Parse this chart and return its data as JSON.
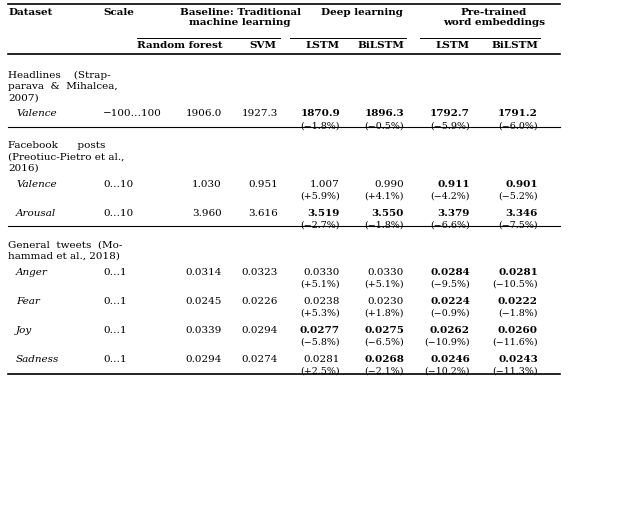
{
  "sections": [
    {
      "dataset_lines": [
        "Headlines    (Strap-",
        "parava  &  Mihalcea,",
        "2007)"
      ],
      "rows": [
        {
          "metric": "Valence",
          "scale": "−100…100",
          "rf": "1906.0",
          "svm": "1927.3",
          "lstm": "1870.9",
          "bilstm": "1896.3",
          "pt_lstm": "1792.7",
          "pt_bilstm": "1791.2",
          "lstm_pct": "(−1.8%)",
          "bilstm_pct": "(−0.5%)",
          "pt_lstm_pct": "(−5.9%)",
          "pt_bilstm_pct": "(−6.0%)",
          "bold_lstm": true,
          "bold_bilstm": true,
          "bold_pt_lstm": true,
          "bold_pt_bilstm": true
        }
      ]
    },
    {
      "dataset_lines": [
        "Facebook      posts",
        "(Preotiuc-Pietro et al.,",
        "2016)"
      ],
      "rows": [
        {
          "metric": "Valence",
          "scale": "0…10",
          "rf": "1.030",
          "svm": "0.951",
          "lstm": "1.007",
          "bilstm": "0.990",
          "pt_lstm": "0.911",
          "pt_bilstm": "0.901",
          "lstm_pct": "(+5.9%)",
          "bilstm_pct": "(+4.1%)",
          "pt_lstm_pct": "(−4.2%)",
          "pt_bilstm_pct": "(−5.2%)",
          "bold_lstm": false,
          "bold_bilstm": false,
          "bold_pt_lstm": true,
          "bold_pt_bilstm": true
        },
        {
          "metric": "Arousal",
          "scale": "0…10",
          "rf": "3.960",
          "svm": "3.616",
          "lstm": "3.519",
          "bilstm": "3.550",
          "pt_lstm": "3.379",
          "pt_bilstm": "3.346",
          "lstm_pct": "(−2.7%)",
          "bilstm_pct": "(−1.8%)",
          "pt_lstm_pct": "(−6.6%)",
          "pt_bilstm_pct": "(−7.5%)",
          "bold_lstm": true,
          "bold_bilstm": true,
          "bold_pt_lstm": true,
          "bold_pt_bilstm": true
        }
      ]
    },
    {
      "dataset_lines": [
        "General  tweets  (Mo-",
        "hammad et al., 2018)"
      ],
      "rows": [
        {
          "metric": "Anger",
          "scale": "0…1",
          "rf": "0.0314",
          "svm": "0.0323",
          "lstm": "0.0330",
          "bilstm": "0.0330",
          "pt_lstm": "0.0284",
          "pt_bilstm": "0.0281",
          "lstm_pct": "(+5.1%)",
          "bilstm_pct": "(+5.1%)",
          "pt_lstm_pct": "(−9.5%)",
          "pt_bilstm_pct": "(−10.5%)",
          "bold_lstm": false,
          "bold_bilstm": false,
          "bold_pt_lstm": true,
          "bold_pt_bilstm": true
        },
        {
          "metric": "Fear",
          "scale": "0…1",
          "rf": "0.0245",
          "svm": "0.0226",
          "lstm": "0.0238",
          "bilstm": "0.0230",
          "pt_lstm": "0.0224",
          "pt_bilstm": "0.0222",
          "lstm_pct": "(+5.3%)",
          "bilstm_pct": "(+1.8%)",
          "pt_lstm_pct": "(−0.9%)",
          "pt_bilstm_pct": "(−1.8%)",
          "bold_lstm": false,
          "bold_bilstm": false,
          "bold_pt_lstm": true,
          "bold_pt_bilstm": true
        },
        {
          "metric": "Joy",
          "scale": "0…1",
          "rf": "0.0339",
          "svm": "0.0294",
          "lstm": "0.0277",
          "bilstm": "0.0275",
          "pt_lstm": "0.0262",
          "pt_bilstm": "0.0260",
          "lstm_pct": "(−5.8%)",
          "bilstm_pct": "(−6.5%)",
          "pt_lstm_pct": "(−10.9%)",
          "pt_bilstm_pct": "(−11.6%)",
          "bold_lstm": true,
          "bold_bilstm": true,
          "bold_pt_lstm": true,
          "bold_pt_bilstm": true
        },
        {
          "metric": "Sadness",
          "scale": "0…1",
          "rf": "0.0294",
          "svm": "0.0274",
          "lstm": "0.0281",
          "bilstm": "0.0268",
          "pt_lstm": "0.0246",
          "pt_bilstm": "0.0243",
          "lstm_pct": "(+2.5%)",
          "bilstm_pct": "(−2.1%)",
          "pt_lstm_pct": "(−10.2%)",
          "pt_bilstm_pct": "(−11.3%)",
          "bold_lstm": false,
          "bold_bilstm": true,
          "bold_pt_lstm": true,
          "bold_pt_bilstm": true
        }
      ]
    }
  ],
  "background_color": "#ffffff",
  "text_color": "#000000",
  "fontsize": 7.5,
  "small_fontsize": 6.8
}
